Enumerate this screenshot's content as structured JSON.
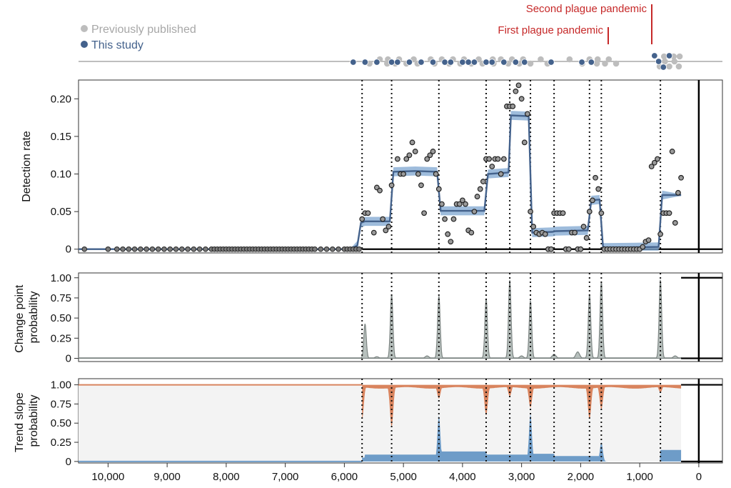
{
  "legend": {
    "previous": {
      "label": "Previously published",
      "color": "#bdbdbd"
    },
    "this_study": {
      "label": "This study",
      "color": "#44628c"
    }
  },
  "annotations": [
    {
      "label": "Second plague pandemic",
      "x": 700
    },
    {
      "label": "First plague pandemic",
      "x": 1450
    }
  ],
  "colors": {
    "accent": "#44628c",
    "ribbon": "#7ea6d0",
    "change_fill": "#b7c0bd",
    "change_line": "#7d8583",
    "up_fill": "#d9845e",
    "down_fill": "#6e9cc8",
    "neutral_fill": "#f3f3f3",
    "annotation": "#c62828"
  },
  "chart_data": [
    {
      "type": "scatter",
      "title": "",
      "ylabel": "Detection rate",
      "xlim": [
        10500,
        -400
      ],
      "ylim": [
        -0.005,
        0.225
      ],
      "x_reversed": true,
      "yticks": [
        "0",
        "0.05",
        "0.10",
        "0.15",
        "0.20"
      ],
      "ytick_values": [
        0,
        0.05,
        0.1,
        0.15,
        0.2
      ],
      "change_points": [
        5700,
        5200,
        4400,
        3600,
        3200,
        2850,
        2450,
        1850,
        1650,
        650
      ],
      "series": [
        {
          "name": "Observed detection rate",
          "x": [
            5700,
            5650,
            5600,
            5500,
            5450,
            5400,
            5350,
            5300,
            5250,
            5200,
            5100,
            5050,
            5000,
            4950,
            4900,
            4850,
            4800,
            4750,
            4700,
            4650,
            4600,
            4550,
            4500,
            4450,
            4400,
            4350,
            4300,
            4250,
            4200,
            4150,
            4100,
            4050,
            4000,
            3950,
            3900,
            3850,
            3800,
            3750,
            3700,
            3650,
            3600,
            3550,
            3500,
            3450,
            3400,
            3350,
            3300,
            3250,
            3200,
            3150,
            3100,
            3050,
            3000,
            2950,
            2900,
            2850,
            2800,
            2750,
            2700,
            2650,
            2600,
            2550,
            2500,
            2450,
            2400,
            2350,
            2300,
            2250,
            2200,
            2150,
            2100,
            2050,
            2000,
            1950,
            1900,
            1850,
            1800,
            1750,
            1700,
            1650,
            1600,
            1550,
            1500,
            1450,
            1400,
            1350,
            1300,
            1250,
            1200,
            1150,
            1100,
            1050,
            1000,
            950,
            900,
            850,
            800,
            750,
            700,
            650,
            600,
            550,
            500,
            450,
            400,
            350,
            300
          ],
          "y": [
            0.04,
            0.048,
            0.048,
            0.022,
            0.082,
            0.078,
            0.04,
            0.025,
            0.03,
            0.085,
            0.12,
            0.1,
            0.1,
            0.12,
            0.125,
            0.142,
            0.13,
            0.1,
            0.085,
            0.048,
            0.12,
            0.125,
            0.13,
            0.1,
            0.08,
            0.06,
            0.04,
            0.02,
            0.01,
            0.04,
            0.06,
            0.06,
            0.065,
            0.06,
            0.025,
            0.022,
            0.05,
            0.07,
            0.08,
            0.09,
            0.12,
            0.12,
            0.11,
            0.12,
            0.12,
            0.1,
            0.12,
            0.19,
            0.19,
            0.19,
            0.21,
            0.218,
            0.2,
            0.142,
            0.18,
            0.05,
            0.03,
            0.022,
            0.02,
            0.022,
            0.02,
            0.0,
            0.0,
            0.048,
            0.048,
            0.048,
            0.048,
            0.0,
            0.0,
            0.022,
            0.022,
            0.0,
            0.0,
            0.03,
            0.015,
            0.05,
            0.065,
            0.095,
            0.08,
            0.048,
            0.0,
            0.0,
            0.0,
            0.0,
            0.0,
            0.0,
            0.0,
            0.0,
            0.0,
            0.0,
            0.0,
            0.0,
            0.0,
            0.003,
            0.01,
            0.012,
            0.11,
            0.115,
            0.12,
            0.02,
            0.048,
            0.048,
            0.048,
            0.13,
            0.035,
            0.075,
            0.095
          ]
        },
        {
          "name": "Zero detection sites",
          "x": [
            10400,
            10000,
            9850,
            9750,
            9650,
            9550,
            9450,
            9350,
            9250,
            9150,
            9050,
            8950,
            8850,
            8750,
            8650,
            8550,
            8450,
            8350,
            8250,
            8200,
            8150,
            8100,
            8050,
            8000,
            7950,
            7900,
            7850,
            7800,
            7750,
            7700,
            7650,
            7600,
            7550,
            7500,
            7450,
            7400,
            7350,
            7300,
            7250,
            7200,
            7150,
            7100,
            7050,
            7000,
            6950,
            6900,
            6850,
            6800,
            6750,
            6700,
            6650,
            6600,
            6550,
            6500,
            6400,
            6300,
            6200,
            6100,
            6000,
            5950,
            5900,
            5850,
            5800,
            5750
          ],
          "y": [
            0,
            0,
            0,
            0,
            0,
            0,
            0,
            0,
            0,
            0,
            0,
            0,
            0,
            0,
            0,
            0,
            0,
            0,
            0,
            0,
            0,
            0,
            0,
            0,
            0,
            0,
            0,
            0,
            0,
            0,
            0,
            0,
            0,
            0,
            0,
            0,
            0,
            0,
            0,
            0,
            0,
            0,
            0,
            0,
            0,
            0,
            0,
            0,
            0,
            0,
            0,
            0,
            0,
            0,
            0,
            0,
            0,
            0,
            0,
            0,
            0,
            0,
            0,
            0
          ]
        },
        {
          "name": "Fitted detection rate",
          "type": "line",
          "x": [
            10500,
            5900,
            5780,
            5720,
            5650,
            5230,
            5170,
            4800,
            4430,
            4370,
            3980,
            3630,
            3570,
            3220,
            3180,
            2880,
            2820,
            2480,
            2420,
            1880,
            1820,
            1680,
            1620,
            680,
            620,
            300
          ],
          "y": [
            0,
            0,
            0.005,
            0.035,
            0.037,
            0.037,
            0.103,
            0.104,
            0.103,
            0.051,
            0.051,
            0.051,
            0.1,
            0.102,
            0.178,
            0.177,
            0.022,
            0.023,
            0.024,
            0.025,
            0.065,
            0.066,
            0.002,
            0.003,
            0.072,
            0.072
          ]
        }
      ]
    },
    {
      "type": "area",
      "title": "",
      "ylabel": "Change point probability",
      "xlim": [
        10500,
        -400
      ],
      "ylim": [
        -0.04,
        1.06
      ],
      "yticks": [
        "0",
        "0.25",
        "0.50",
        "0.75",
        "1.00"
      ],
      "ytick_values": [
        0,
        0.25,
        0.5,
        0.75,
        1.0
      ],
      "peaks": [
        {
          "x": 5650,
          "value": 0.43
        },
        {
          "x": 5200,
          "value": 0.8
        },
        {
          "x": 4400,
          "value": 0.78
        },
        {
          "x": 3600,
          "value": 0.75
        },
        {
          "x": 3200,
          "value": 0.98
        },
        {
          "x": 2850,
          "value": 0.72
        },
        {
          "x": 2450,
          "value": 0.05
        },
        {
          "x": 2050,
          "value": 0.08
        },
        {
          "x": 1850,
          "value": 0.8
        },
        {
          "x": 1650,
          "value": 0.96
        },
        {
          "x": 650,
          "value": 0.98
        },
        {
          "x": 4600,
          "value": 0.03
        },
        {
          "x": 3000,
          "value": 0.03
        },
        {
          "x": 5450,
          "value": 0.02
        },
        {
          "x": 400,
          "value": 0.03
        }
      ]
    },
    {
      "type": "area",
      "title": "",
      "ylabel": "Trend slope probability",
      "xlim": [
        10500,
        -400
      ],
      "ylim": [
        -0.02,
        1.08
      ],
      "yticks": [
        "0",
        "0.25",
        "0.50",
        "0.75",
        "1.00"
      ],
      "ytick_values": [
        0,
        0.25,
        0.5,
        0.75,
        1.0
      ],
      "series": [
        {
          "name": "Positive slope",
          "x": [
            5700,
            5200,
            4400,
            3600,
            3200,
            2850,
            1850,
            1650,
            650
          ],
          "depth": [
            0.45,
            0.55,
            0.18,
            0.4,
            0.15,
            0.3,
            0.45,
            0.32,
            0.1
          ]
        },
        {
          "name": "Negative slope",
          "x": [
            4400,
            2850,
            1650
          ],
          "height": [
            0.6,
            0.62,
            0.25
          ]
        }
      ]
    }
  ],
  "xaxis": {
    "ticks": [
      "10,000",
      "9,000",
      "8,000",
      "7,000",
      "6,000",
      "5,000",
      "4,000",
      "3,000",
      "2,000",
      "1,000",
      "0"
    ],
    "tick_values": [
      10000,
      9000,
      8000,
      7000,
      6000,
      5000,
      4000,
      3000,
      2000,
      1000,
      0
    ]
  },
  "timeline": {
    "previous_x": [
      5550,
      5400,
      5300,
      5250,
      5150,
      5050,
      4950,
      4850,
      4750,
      4550,
      4450,
      4350,
      4250,
      4150,
      4050,
      3950,
      3850,
      3750,
      3650,
      3500,
      3450,
      3350,
      3250,
      3150,
      3050,
      2950,
      2850,
      2700,
      2550,
      2200,
      1950,
      1850,
      1750,
      1700,
      1600,
      1500,
      1400,
      700,
      650,
      600,
      550,
      500,
      450,
      400,
      350,
      300
    ],
    "this_x": [
      5850,
      5650,
      5450,
      5200,
      5100,
      4900,
      4700,
      4500,
      4300,
      4200,
      4000,
      3900,
      3800,
      3600,
      3500,
      3300,
      3100,
      2950,
      2500,
      1980,
      1820,
      750,
      680,
      600,
      500
    ]
  }
}
